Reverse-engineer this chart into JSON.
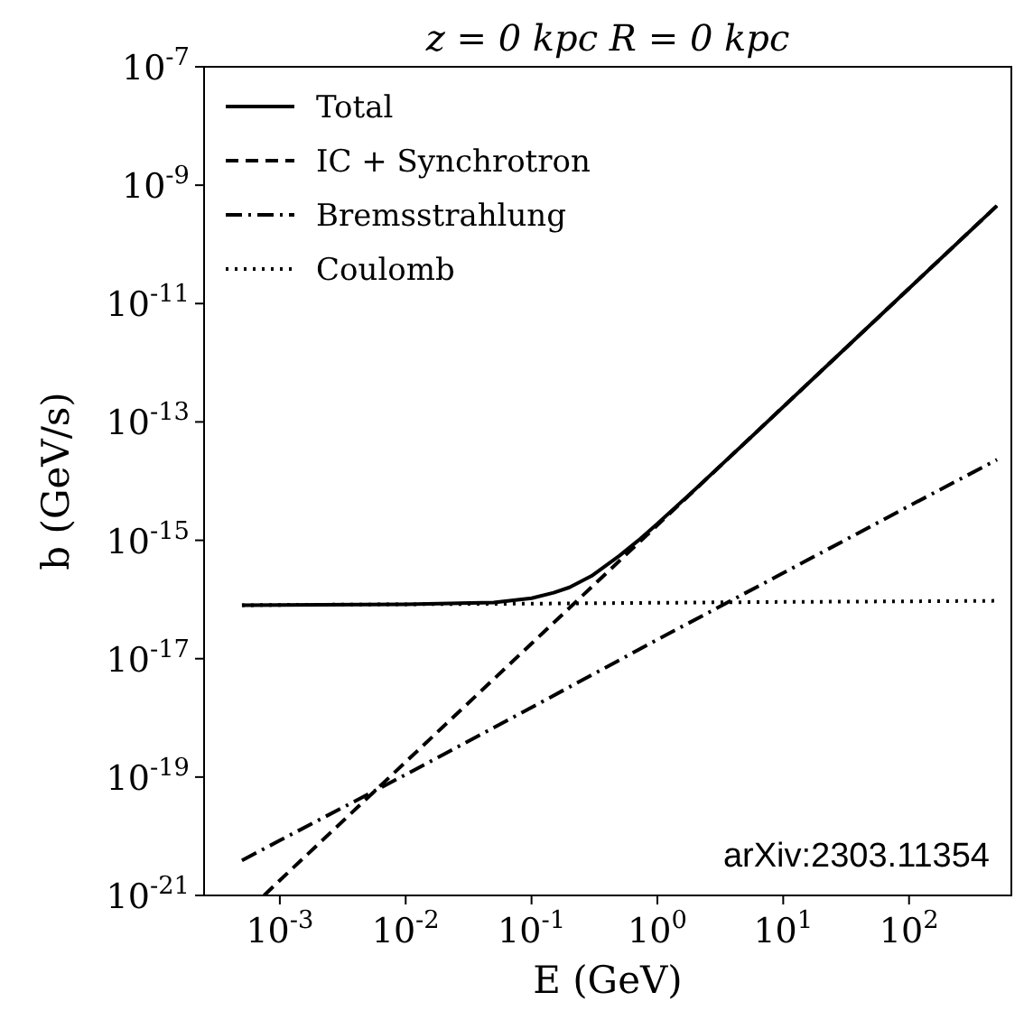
{
  "chart_data": {
    "type": "line",
    "title": "z = 0 kpc  R = 0 kpc",
    "xlabel": "E (GeV)",
    "ylabel": "b (GeV/s)",
    "log": "xy",
    "grid": false,
    "legend": "top left",
    "xlim": [
      0.00025,
      650
    ],
    "ylim": [
      1e-21,
      1e-07
    ],
    "xticks": [
      {
        "value": 0.001,
        "label": "10$^{-3}$"
      },
      {
        "value": 0.01,
        "label": "10$^{-2}$"
      },
      {
        "value": 0.1,
        "label": "10$^{-1}$"
      },
      {
        "value": 1,
        "label": "10$^{0}$"
      },
      {
        "value": 10,
        "label": "10$^{1}$"
      },
      {
        "value": 100,
        "label": "10$^{2}$"
      }
    ],
    "yticks": [
      {
        "value": 1e-21,
        "label": "10$^{-21}$"
      },
      {
        "value": 1e-19,
        "label": "10$^{-19}$"
      },
      {
        "value": 1e-17,
        "label": "10$^{-17}$"
      },
      {
        "value": 1e-15,
        "label": "10$^{-15}$"
      },
      {
        "value": 1e-13,
        "label": "10$^{-13}$"
      },
      {
        "value": 1e-11,
        "label": "10$^{-11}$"
      },
      {
        "value": 1e-09,
        "label": "10$^{-9}$"
      },
      {
        "value": 1e-07,
        "label": "10$^{-7}$"
      }
    ],
    "annotations": [
      "arXiv:2303.11354"
    ],
    "series": [
      {
        "name": "Total",
        "color": "#000000",
        "line_style": "solid",
        "x": [
          0.0005,
          0.001,
          0.01,
          0.05,
          0.1,
          0.15,
          0.2,
          0.3,
          0.5,
          0.7,
          1,
          2,
          5,
          10,
          100,
          500
        ],
        "values": [
          8e-17,
          8.1e-17,
          8.3e-17,
          8.9e-17,
          1.05e-16,
          1.3e-16,
          1.6e-16,
          2.5e-16,
          5.5e-16,
          9.8e-16,
          1.9e-15,
          7.3e-15,
          4.5e-14,
          1.8e-13,
          1.8e-11,
          4.5e-10
        ]
      },
      {
        "name": "IC + Synchrotron",
        "color": "#000000",
        "line_style": "dashed",
        "x": [
          0.00075,
          0.001,
          0.01,
          0.1,
          0.2,
          0.5,
          1,
          2,
          5,
          10,
          100,
          500
        ],
        "values": [
          1e-21,
          1.8e-21,
          1.8e-19,
          1.8e-17,
          7.2e-17,
          4.5e-16,
          1.8e-15,
          7.2e-15,
          4.5e-14,
          1.8e-13,
          1.8e-11,
          4.5e-10
        ]
      },
      {
        "name": "Bremsstrahlung",
        "color": "#000000",
        "line_style": "dashdot",
        "x": [
          0.0005,
          0.001,
          0.01,
          0.1,
          1,
          10,
          100,
          500
        ],
        "values": [
          3.9e-21,
          8.5e-21,
          1.1e-19,
          1.5e-18,
          2.1e-17,
          2.8e-16,
          3.8e-15,
          2.3e-14
        ]
      },
      {
        "name": "Coulomb",
        "color": "#000000",
        "line_style": "dotted",
        "x": [
          0.0005,
          0.001,
          0.01,
          0.1,
          1,
          10,
          100,
          500
        ],
        "values": [
          8e-17,
          8.1e-17,
          8.3e-17,
          8.5e-17,
          8.8e-17,
          9.1e-17,
          9.3e-17,
          9.5e-17
        ]
      }
    ]
  }
}
